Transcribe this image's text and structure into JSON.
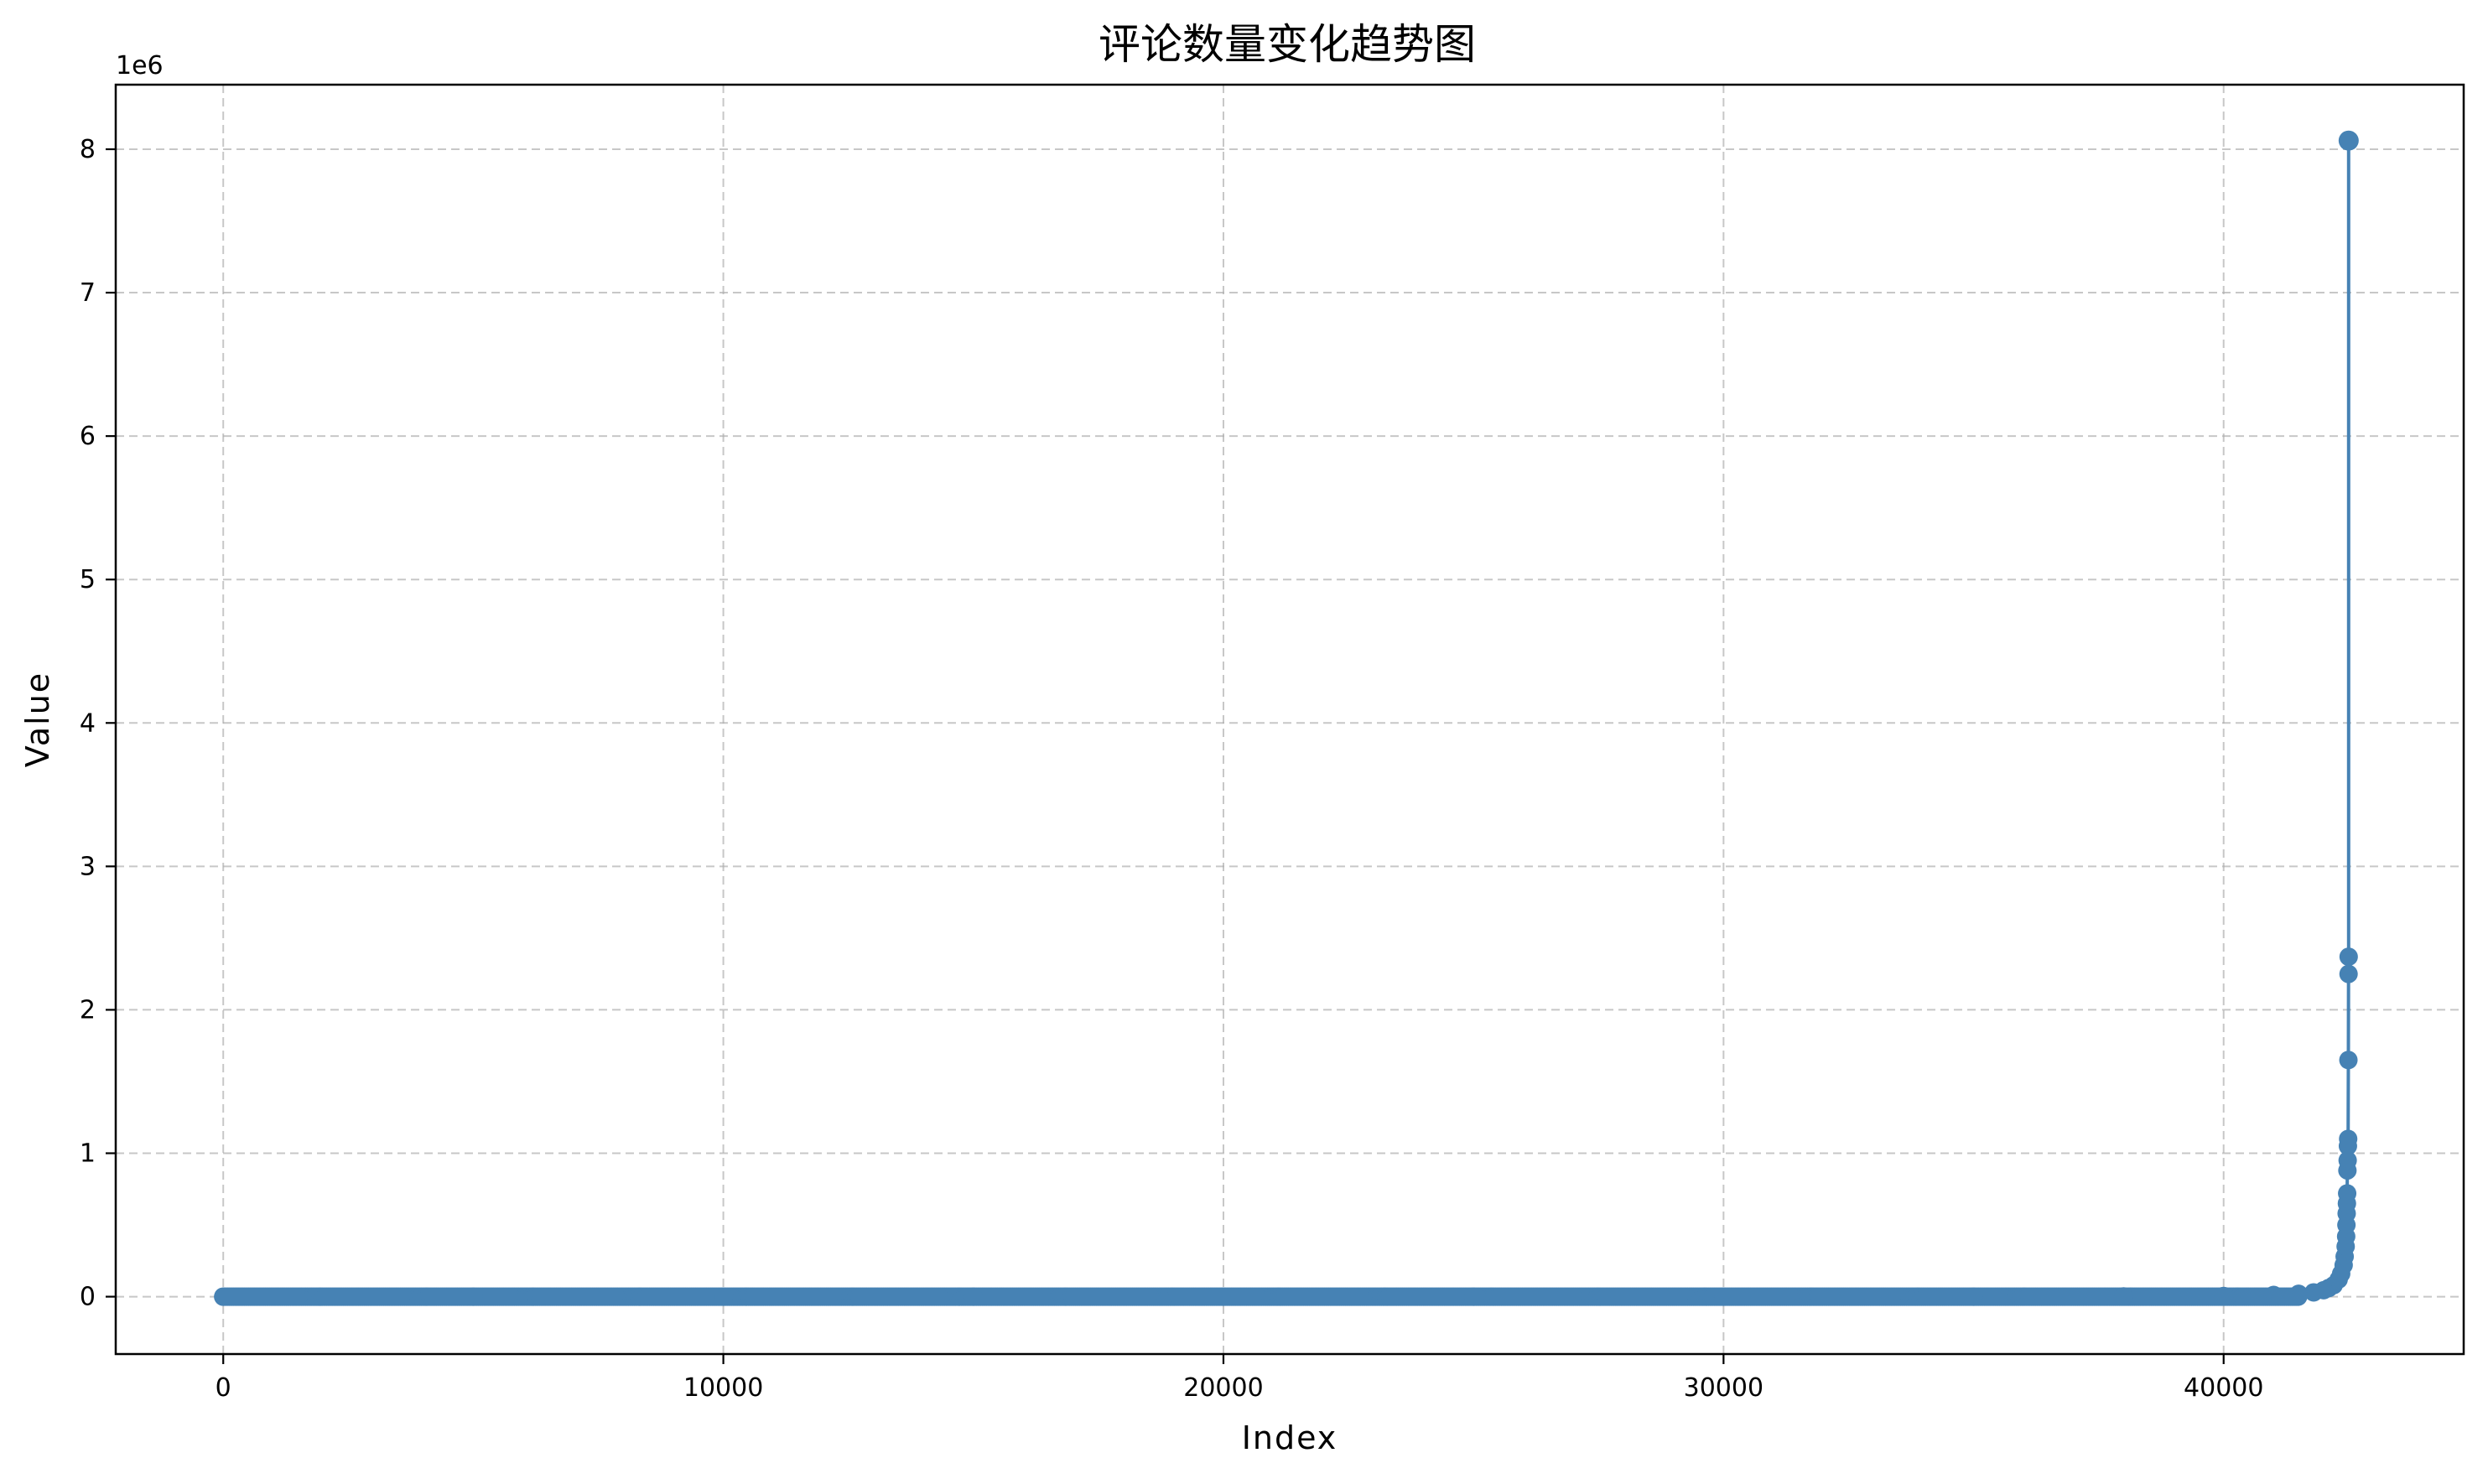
{
  "chart_data": {
    "type": "line",
    "title": "评论数量变化趋势图",
    "xlabel": "Index",
    "ylabel": "Value",
    "y_offset_text": "1e6",
    "xlim": [
      -2150,
      44800
    ],
    "ylim": [
      -400000,
      8450000
    ],
    "x_ticks": [
      0,
      10000,
      20000,
      30000,
      40000
    ],
    "x_tick_labels": [
      "0",
      "10000",
      "20000",
      "30000",
      "40000"
    ],
    "y_ticks": [
      0,
      1000000,
      2000000,
      3000000,
      4000000,
      5000000,
      6000000,
      7000000,
      8000000
    ],
    "y_tick_labels": [
      "0",
      "1",
      "2",
      "3",
      "4",
      "5",
      "6",
      "7",
      "8"
    ],
    "grid": true,
    "legend": "none",
    "series": [
      {
        "color": "#4682b4",
        "marker": "circle",
        "x": [
          0,
          5000,
          10000,
          15000,
          20000,
          25000,
          30000,
          35000,
          38000,
          40000,
          41000,
          41500,
          41800,
          42000,
          42100,
          42200,
          42300,
          42350,
          42400,
          42420,
          42440,
          42450,
          42455,
          42460,
          42465,
          42470,
          42475,
          42480,
          42485,
          42490,
          42495,
          42498,
          42500
        ],
        "y": [
          0,
          0,
          0,
          0,
          0,
          0,
          0,
          0,
          2000,
          5000,
          12000,
          20000,
          30000,
          45000,
          60000,
          80000,
          120000,
          160000,
          220000,
          280000,
          350000,
          420000,
          500000,
          580000,
          650000,
          720000,
          880000,
          950000,
          1050000,
          1100000,
          1650000,
          2250000,
          2370000
        ]
      },
      {
        "color": "#4682b4",
        "marker": "circle",
        "x": [
          42500
        ],
        "y": [
          8060000
        ]
      }
    ]
  }
}
